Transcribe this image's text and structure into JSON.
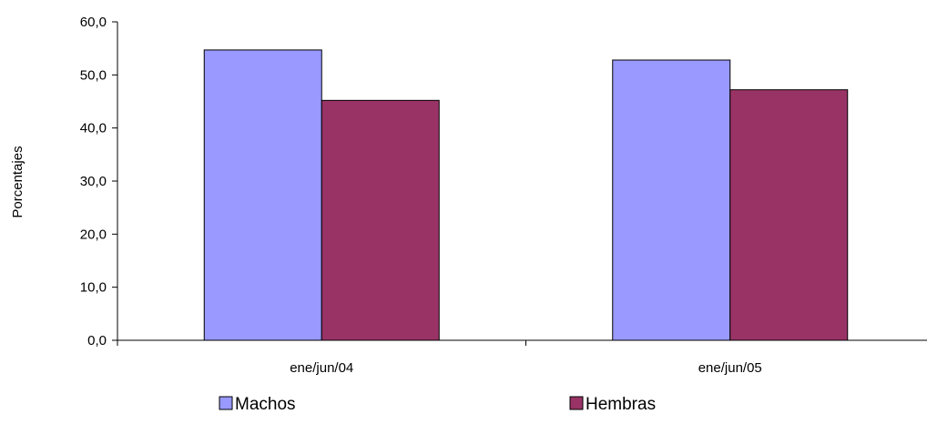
{
  "chart_data": {
    "type": "bar",
    "categories": [
      "ene/jun/04",
      "ene/jun/05"
    ],
    "series": [
      {
        "name": "Machos",
        "values": [
          54.7,
          52.8
        ],
        "color": "#9999FF"
      },
      {
        "name": "Hembras",
        "values": [
          45.2,
          47.2
        ],
        "color": "#993366"
      }
    ],
    "ylabel": "Porcentajes",
    "ylim": [
      0,
      60
    ],
    "yticks": [
      "0,0",
      "10,0",
      "20,0",
      "30,0",
      "40,0",
      "50,0",
      "60,0"
    ],
    "grid": false,
    "legend_position": "bottom"
  }
}
